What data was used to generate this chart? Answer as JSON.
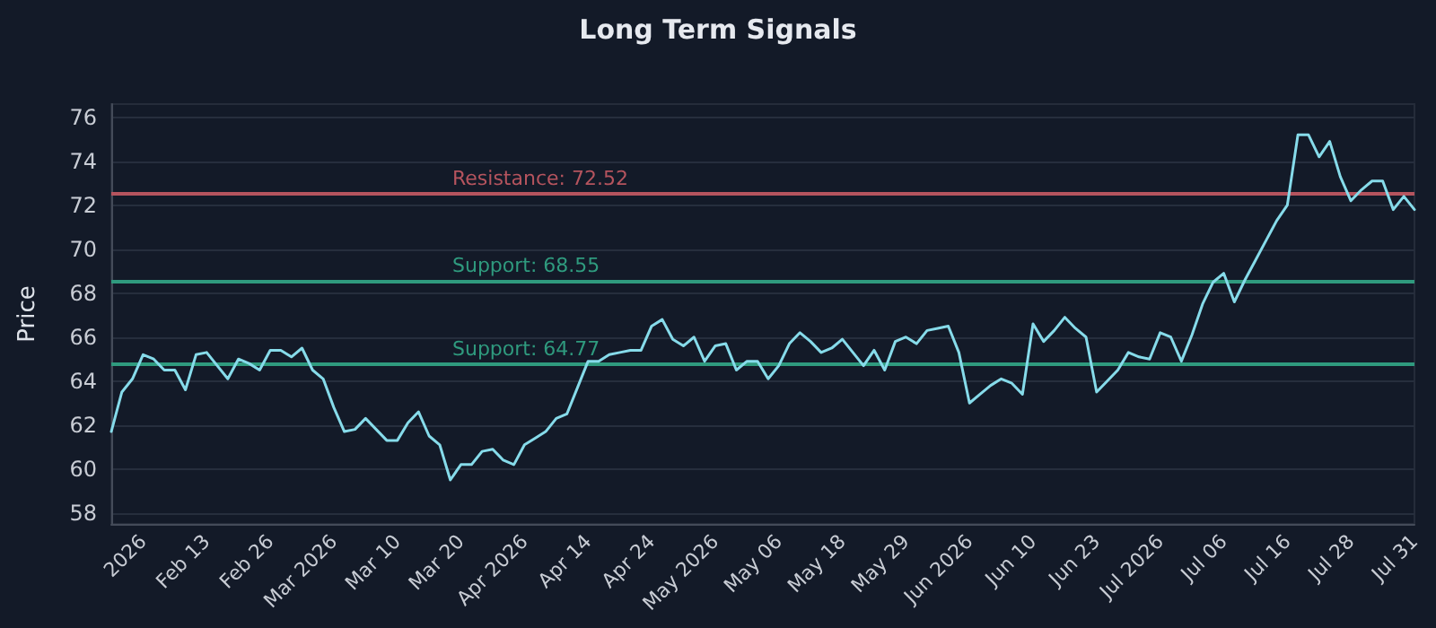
{
  "chart_data": {
    "type": "line",
    "title": "Long Term Signals",
    "ylabel": "Price",
    "categories": [
      null,
      null,
      null,
      "2026",
      null,
      null,
      null,
      null,
      null,
      "Feb 13",
      null,
      null,
      null,
      null,
      null,
      "Feb 26",
      null,
      null,
      null,
      null,
      null,
      "Mar 2026",
      null,
      null,
      null,
      null,
      null,
      "Mar 10",
      null,
      null,
      null,
      null,
      null,
      "Mar 20",
      null,
      null,
      null,
      null,
      null,
      "Apr 2026",
      null,
      null,
      null,
      null,
      null,
      "Apr 14",
      null,
      null,
      null,
      null,
      null,
      "Apr 24",
      null,
      null,
      null,
      null,
      null,
      "May 2026",
      null,
      null,
      null,
      null,
      null,
      "May 06",
      null,
      null,
      null,
      null,
      null,
      "May 18",
      null,
      null,
      null,
      null,
      null,
      "May 29",
      null,
      null,
      null,
      null,
      null,
      "Jun 2026",
      null,
      null,
      null,
      null,
      null,
      "Jun 10",
      null,
      null,
      null,
      null,
      null,
      "Jun 23",
      null,
      null,
      null,
      null,
      null,
      "Jul 2026",
      null,
      null,
      null,
      null,
      null,
      "Jul 06",
      null,
      null,
      null,
      null,
      null,
      "Jul 16",
      null,
      null,
      null,
      null,
      null,
      "Jul 28",
      null,
      null,
      null,
      null,
      null,
      "Jul 31"
    ],
    "series": [
      {
        "color": "#86dbea",
        "values": [
          61.7,
          63.5,
          64.1,
          65.2,
          65.0,
          64.5,
          64.5,
          63.6,
          65.2,
          65.3,
          64.7,
          64.1,
          65.0,
          64.8,
          64.5,
          65.4,
          65.4,
          65.1,
          65.5,
          64.5,
          64.1,
          62.8,
          61.7,
          61.8,
          62.3,
          61.8,
          61.3,
          61.3,
          62.1,
          62.6,
          61.5,
          61.1,
          59.5,
          60.2,
          60.2,
          60.8,
          60.9,
          60.4,
          60.2,
          61.1,
          61.4,
          61.7,
          62.3,
          62.5,
          63.7,
          64.9,
          64.9,
          65.2,
          65.3,
          65.4,
          65.4,
          66.5,
          66.8,
          65.9,
          65.6,
          66.0,
          64.9,
          65.6,
          65.7,
          64.5,
          64.9,
          64.9,
          64.1,
          64.7,
          65.7,
          66.2,
          65.8,
          65.3,
          65.5,
          65.9,
          65.3,
          64.7,
          65.4,
          64.5,
          65.8,
          66.0,
          65.7,
          66.3,
          66.4,
          66.5,
          65.3,
          63.0,
          63.4,
          63.8,
          64.1,
          63.9,
          63.4,
          66.6,
          65.8,
          66.3,
          66.9,
          66.4,
          66.0,
          63.5,
          64.0,
          64.5,
          65.3,
          65.1,
          65.0,
          66.2,
          66.0,
          64.9,
          66.1,
          67.5,
          68.5,
          68.9,
          67.6,
          68.6,
          69.5,
          70.4,
          71.3,
          72.0,
          75.2,
          75.2,
          74.2,
          74.9,
          73.3,
          72.2,
          72.7,
          73.1,
          73.1,
          71.8,
          72.4,
          71.8
        ]
      }
    ],
    "ylim": [
      57.5,
      76.6
    ],
    "yticks": [
      58,
      60,
      62,
      64,
      66,
      68,
      70,
      72,
      74,
      76
    ],
    "grid": "y",
    "marker": "none",
    "line_style": "solid",
    "ref_lines": [
      {
        "axis": "y",
        "value": 72.52,
        "label": "Resistance: 72.52",
        "color": "#b5545e"
      },
      {
        "axis": "y",
        "value": 68.55,
        "label": "Support: 68.55",
        "color": "#2f9a7e"
      },
      {
        "axis": "y",
        "value": 64.77,
        "label": "Support: 64.77",
        "color": "#2f9a7e"
      }
    ]
  }
}
